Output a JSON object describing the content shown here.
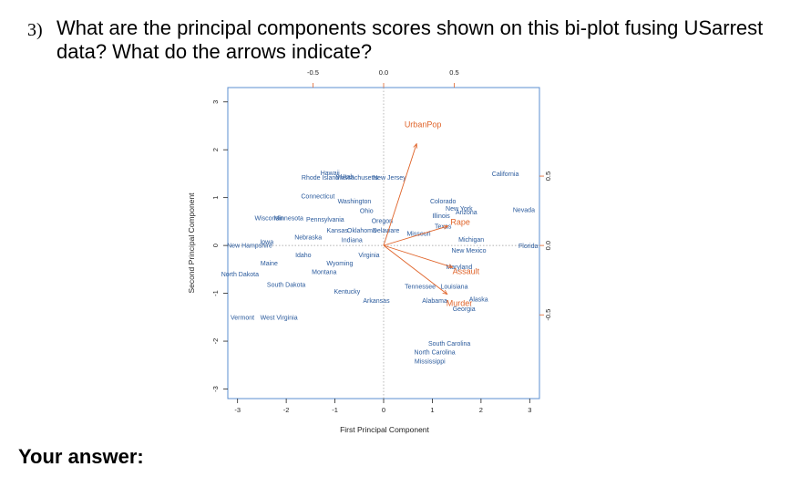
{
  "question": {
    "number": "3)",
    "text": "What are the principal components scores shown on this bi-plot fusing USarrest data? What do the arrows indicate?"
  },
  "answer_label": "Your answer:",
  "chart_data": {
    "type": "scatter",
    "xlabel": "First Principal Component",
    "ylabel": "Second Principal Component",
    "xlim": [
      -3.2,
      3.2
    ],
    "ylim": [
      -3.2,
      3.3
    ],
    "x_ticks": [
      "-3",
      "-2",
      "-1",
      "0",
      "1",
      "2",
      "3"
    ],
    "y_ticks": [
      "-3",
      "-2",
      "-1",
      "0",
      "1",
      "2",
      "3"
    ],
    "top_ticks": [
      "-0.5",
      "0.0",
      "0.5"
    ],
    "right_ticks": [
      "-0.5",
      "0.0",
      "0.5"
    ],
    "loading_scale": 2.9,
    "points": [
      {
        "name": "Hawaii",
        "x": -1.1,
        "y": 1.52
      },
      {
        "name": "Rhode Island",
        "x": -1.3,
        "y": 1.42
      },
      {
        "name": "Massachusetts",
        "x": -0.55,
        "y": 1.42
      },
      {
        "name": "Utah",
        "x": -0.75,
        "y": 1.44
      },
      {
        "name": "New Jersey",
        "x": 0.12,
        "y": 1.42
      },
      {
        "name": "California",
        "x": 2.5,
        "y": 1.5
      },
      {
        "name": "Connecticut",
        "x": -1.35,
        "y": 1.03
      },
      {
        "name": "Washington",
        "x": -0.6,
        "y": 0.93
      },
      {
        "name": "Colorado",
        "x": 1.22,
        "y": 0.93
      },
      {
        "name": "Ohio",
        "x": -0.35,
        "y": 0.73
      },
      {
        "name": "New York",
        "x": 1.55,
        "y": 0.77
      },
      {
        "name": "Arizona",
        "x": 1.7,
        "y": 0.7
      },
      {
        "name": "Illinois",
        "x": 1.18,
        "y": 0.62
      },
      {
        "name": "Nevada",
        "x": 2.88,
        "y": 0.75
      },
      {
        "name": "Wisconsin",
        "x": -2.35,
        "y": 0.57
      },
      {
        "name": "Minnesota",
        "x": -1.95,
        "y": 0.57
      },
      {
        "name": "Pennsylvania",
        "x": -1.2,
        "y": 0.55
      },
      {
        "name": "Oregon",
        "x": -0.03,
        "y": 0.52
      },
      {
        "name": "Texas",
        "x": 1.22,
        "y": 0.4
      },
      {
        "name": "Kansas",
        "x": -0.95,
        "y": 0.32
      },
      {
        "name": "Oklahoma",
        "x": -0.45,
        "y": 0.32
      },
      {
        "name": "Delaware",
        "x": 0.05,
        "y": 0.32
      },
      {
        "name": "Indiana",
        "x": -0.65,
        "y": 0.12
      },
      {
        "name": "Missouri",
        "x": 0.72,
        "y": 0.25
      },
      {
        "name": "Nebraska",
        "x": -1.55,
        "y": 0.17
      },
      {
        "name": "Iowa",
        "x": -2.4,
        "y": 0.08
      },
      {
        "name": "Michigan",
        "x": 1.8,
        "y": 0.13
      },
      {
        "name": "New Hampshire",
        "x": -2.75,
        "y": 0.0
      },
      {
        "name": "Florida",
        "x": 2.97,
        "y": -0.01
      },
      {
        "name": "New Mexico",
        "x": 1.75,
        "y": -0.1
      },
      {
        "name": "Idaho",
        "x": -1.65,
        "y": -0.2
      },
      {
        "name": "Virginia",
        "x": -0.3,
        "y": -0.2
      },
      {
        "name": "Wyoming",
        "x": -0.9,
        "y": -0.37
      },
      {
        "name": "Maine",
        "x": -2.35,
        "y": -0.37
      },
      {
        "name": "Maryland",
        "x": 1.55,
        "y": -0.45
      },
      {
        "name": "Montana",
        "x": -1.22,
        "y": -0.55
      },
      {
        "name": "North Dakota",
        "x": -2.95,
        "y": -0.6
      },
      {
        "name": "South Dakota",
        "x": -2.0,
        "y": -0.82
      },
      {
        "name": "Tennessee",
        "x": 0.75,
        "y": -0.86
      },
      {
        "name": "Louisiana",
        "x": 1.45,
        "y": -0.86
      },
      {
        "name": "Kentucky",
        "x": -0.75,
        "y": -0.96
      },
      {
        "name": "Arkansas",
        "x": -0.15,
        "y": -1.15
      },
      {
        "name": "Alabama",
        "x": 1.05,
        "y": -1.15
      },
      {
        "name": "Alaska",
        "x": 1.95,
        "y": -1.12
      },
      {
        "name": "Georgia",
        "x": 1.65,
        "y": -1.32
      },
      {
        "name": "Vermont",
        "x": -2.9,
        "y": -1.5
      },
      {
        "name": "West Virginia",
        "x": -2.15,
        "y": -1.5
      },
      {
        "name": "South Carolina",
        "x": 1.35,
        "y": -2.05
      },
      {
        "name": "North Carolina",
        "x": 1.05,
        "y": -2.23
      },
      {
        "name": "Mississippi",
        "x": 0.95,
        "y": -2.42
      }
    ],
    "loadings": [
      {
        "name": "UrbanPop",
        "x": 0.278,
        "y": 0.873
      },
      {
        "name": "Rape",
        "x": 0.543,
        "y": 0.167
      },
      {
        "name": "Assault",
        "x": 0.583,
        "y": -0.188
      },
      {
        "name": "Murder",
        "x": 0.536,
        "y": -0.418
      }
    ],
    "colors": {
      "points": "#2a5a9c",
      "arrows": "#e0642a",
      "frame": "#5b8fd0"
    }
  }
}
